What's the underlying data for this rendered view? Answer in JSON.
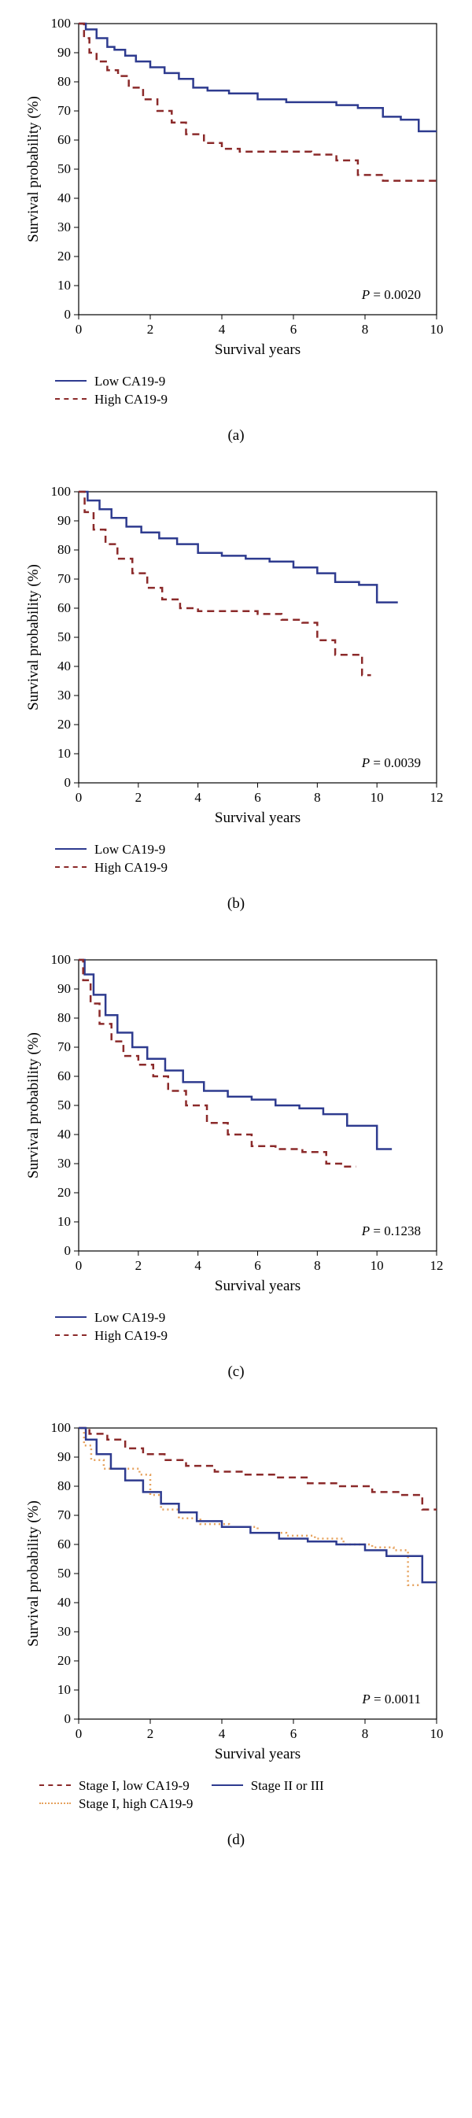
{
  "global": {
    "ylabel": "Survival probability (%)",
    "xlabel": "Survival years",
    "axis_color": "#000000",
    "text_color": "#000000",
    "label_fontsize": 19,
    "tick_fontsize": 17
  },
  "colors": {
    "low": "#2e3b8f",
    "high": "#8b2a2a",
    "stage1low": "#8b2a2a",
    "stage1high": "#e6a15c",
    "stage23": "#2e3b8f"
  },
  "panels": {
    "a": {
      "label": "(a)",
      "pvalue": "P = 0.0020",
      "xlim": [
        0,
        10
      ],
      "xticks": [
        0,
        2,
        4,
        6,
        8,
        10
      ],
      "ylim": [
        0,
        100
      ],
      "yticks": [
        0,
        10,
        20,
        30,
        40,
        50,
        60,
        70,
        80,
        90,
        100
      ],
      "series": [
        {
          "key": "low",
          "style": "solid",
          "label": "Low CA19-9",
          "pts": [
            [
              0,
              100
            ],
            [
              0.2,
              98
            ],
            [
              0.5,
              95
            ],
            [
              0.8,
              92
            ],
            [
              1.0,
              91
            ],
            [
              1.3,
              89
            ],
            [
              1.6,
              87
            ],
            [
              2.0,
              85
            ],
            [
              2.4,
              83
            ],
            [
              2.8,
              81
            ],
            [
              3.2,
              78
            ],
            [
              3.6,
              77
            ],
            [
              4.2,
              76
            ],
            [
              5.0,
              74
            ],
            [
              5.8,
              73
            ],
            [
              6.5,
              73
            ],
            [
              7.2,
              72
            ],
            [
              7.8,
              71
            ],
            [
              8.5,
              68
            ],
            [
              9.0,
              67
            ],
            [
              9.5,
              63
            ],
            [
              10,
              63
            ]
          ]
        },
        {
          "key": "high",
          "style": "dashed",
          "label": "High CA19-9",
          "pts": [
            [
              0,
              100
            ],
            [
              0.15,
              95
            ],
            [
              0.3,
              90
            ],
            [
              0.5,
              87
            ],
            [
              0.8,
              84
            ],
            [
              1.1,
              82
            ],
            [
              1.4,
              78
            ],
            [
              1.8,
              74
            ],
            [
              2.2,
              70
            ],
            [
              2.6,
              66
            ],
            [
              3.0,
              62
            ],
            [
              3.5,
              59
            ],
            [
              4.0,
              57
            ],
            [
              4.5,
              56
            ],
            [
              5.5,
              56
            ],
            [
              6.5,
              55
            ],
            [
              7.2,
              53
            ],
            [
              7.8,
              48
            ],
            [
              8.5,
              46
            ],
            [
              9.2,
              46
            ],
            [
              10,
              46
            ]
          ]
        }
      ]
    },
    "b": {
      "label": "(b)",
      "pvalue": "P = 0.0039",
      "xlim": [
        0,
        12
      ],
      "xticks": [
        0,
        2,
        4,
        6,
        8,
        10,
        12
      ],
      "ylim": [
        0,
        100
      ],
      "yticks": [
        0,
        10,
        20,
        30,
        40,
        50,
        60,
        70,
        80,
        90,
        100
      ],
      "series": [
        {
          "key": "low",
          "style": "solid",
          "label": "Low CA19-9",
          "pts": [
            [
              0,
              100
            ],
            [
              0.3,
              97
            ],
            [
              0.7,
              94
            ],
            [
              1.1,
              91
            ],
            [
              1.6,
              88
            ],
            [
              2.1,
              86
            ],
            [
              2.7,
              84
            ],
            [
              3.3,
              82
            ],
            [
              4.0,
              79
            ],
            [
              4.8,
              78
            ],
            [
              5.6,
              77
            ],
            [
              6.4,
              76
            ],
            [
              7.2,
              74
            ],
            [
              8.0,
              72
            ],
            [
              8.6,
              69
            ],
            [
              9.4,
              68
            ],
            [
              10.0,
              62
            ],
            [
              10.7,
              62
            ]
          ]
        },
        {
          "key": "high",
          "style": "dashed",
          "label": "High CA19-9",
          "pts": [
            [
              0,
              100
            ],
            [
              0.2,
              93
            ],
            [
              0.5,
              87
            ],
            [
              0.9,
              82
            ],
            [
              1.3,
              77
            ],
            [
              1.8,
              72
            ],
            [
              2.3,
              67
            ],
            [
              2.8,
              63
            ],
            [
              3.4,
              60
            ],
            [
              4.0,
              59
            ],
            [
              5.0,
              59
            ],
            [
              6.0,
              58
            ],
            [
              6.8,
              56
            ],
            [
              7.5,
              55
            ],
            [
              8.0,
              49
            ],
            [
              8.6,
              44
            ],
            [
              9.5,
              37
            ],
            [
              9.8,
              37
            ]
          ]
        }
      ]
    },
    "c": {
      "label": "(c)",
      "pvalue": "P = 0.1238",
      "xlim": [
        0,
        12
      ],
      "xticks": [
        0,
        2,
        4,
        6,
        8,
        10,
        12
      ],
      "ylim": [
        0,
        100
      ],
      "yticks": [
        0,
        10,
        20,
        30,
        40,
        50,
        60,
        70,
        80,
        90,
        100
      ],
      "series": [
        {
          "key": "low",
          "style": "solid",
          "label": "Low CA19-9",
          "pts": [
            [
              0,
              100
            ],
            [
              0.2,
              95
            ],
            [
              0.5,
              88
            ],
            [
              0.9,
              81
            ],
            [
              1.3,
              75
            ],
            [
              1.8,
              70
            ],
            [
              2.3,
              66
            ],
            [
              2.9,
              62
            ],
            [
              3.5,
              58
            ],
            [
              4.2,
              55
            ],
            [
              5.0,
              53
            ],
            [
              5.8,
              52
            ],
            [
              6.6,
              50
            ],
            [
              7.4,
              49
            ],
            [
              8.2,
              47
            ],
            [
              9.0,
              43
            ],
            [
              9.6,
              43
            ],
            [
              10.0,
              35
            ],
            [
              10.5,
              35
            ]
          ]
        },
        {
          "key": "high",
          "style": "dashed",
          "label": "High CA19-9",
          "pts": [
            [
              0,
              100
            ],
            [
              0.15,
              93
            ],
            [
              0.4,
              85
            ],
            [
              0.7,
              78
            ],
            [
              1.1,
              72
            ],
            [
              1.5,
              67
            ],
            [
              2.0,
              64
            ],
            [
              2.5,
              60
            ],
            [
              3.0,
              55
            ],
            [
              3.6,
              50
            ],
            [
              4.3,
              44
            ],
            [
              5.0,
              40
            ],
            [
              5.8,
              36
            ],
            [
              6.6,
              35
            ],
            [
              7.5,
              34
            ],
            [
              8.3,
              30
            ],
            [
              8.8,
              29
            ],
            [
              9.3,
              29
            ]
          ]
        }
      ]
    },
    "d": {
      "label": "(d)",
      "pvalue": "P = 0.0011",
      "xlim": [
        0,
        10
      ],
      "xticks": [
        0,
        2,
        4,
        6,
        8,
        10
      ],
      "ylim": [
        0,
        100
      ],
      "yticks": [
        0,
        10,
        20,
        30,
        40,
        50,
        60,
        70,
        80,
        90,
        100
      ],
      "series": [
        {
          "key": "stage1low",
          "style": "dashed",
          "label": "Stage I, low CA19-9",
          "pts": [
            [
              0,
              100
            ],
            [
              0.3,
              98
            ],
            [
              0.8,
              96
            ],
            [
              1.3,
              93
            ],
            [
              1.8,
              91
            ],
            [
              2.4,
              89
            ],
            [
              3.0,
              87
            ],
            [
              3.8,
              85
            ],
            [
              4.6,
              84
            ],
            [
              5.5,
              83
            ],
            [
              6.4,
              81
            ],
            [
              7.3,
              80
            ],
            [
              8.2,
              78
            ],
            [
              9.0,
              77
            ],
            [
              9.6,
              72
            ],
            [
              10,
              72
            ]
          ]
        },
        {
          "key": "stage1high",
          "style": "dotted",
          "label": "Stage I, high CA19-9",
          "pts": [
            [
              0,
              100
            ],
            [
              0.15,
              94
            ],
            [
              0.35,
              89
            ],
            [
              0.7,
              86
            ],
            [
              1.2,
              86
            ],
            [
              1.7,
              84
            ],
            [
              2.0,
              77
            ],
            [
              2.3,
              72
            ],
            [
              2.8,
              69
            ],
            [
              3.4,
              67
            ],
            [
              4.2,
              66
            ],
            [
              5.0,
              64
            ],
            [
              5.8,
              63
            ],
            [
              6.6,
              62
            ],
            [
              7.4,
              60
            ],
            [
              8.2,
              59
            ],
            [
              8.8,
              58
            ],
            [
              9.2,
              46
            ],
            [
              9.5,
              46
            ]
          ]
        },
        {
          "key": "stage23",
          "style": "solid",
          "label": "Stage II or III",
          "pts": [
            [
              0,
              100
            ],
            [
              0.2,
              96
            ],
            [
              0.5,
              91
            ],
            [
              0.9,
              86
            ],
            [
              1.3,
              82
            ],
            [
              1.8,
              78
            ],
            [
              2.3,
              74
            ],
            [
              2.8,
              71
            ],
            [
              3.3,
              68
            ],
            [
              4.0,
              66
            ],
            [
              4.8,
              64
            ],
            [
              5.6,
              62
            ],
            [
              6.4,
              61
            ],
            [
              7.2,
              60
            ],
            [
              8.0,
              58
            ],
            [
              8.6,
              56
            ],
            [
              9.2,
              56
            ],
            [
              9.6,
              47
            ],
            [
              10,
              47
            ]
          ]
        }
      ],
      "legend": {
        "rows": [
          [
            {
              "key": "stage1low",
              "style": "dashed",
              "label": "Stage I, low CA19-9"
            },
            {
              "key": "stage23",
              "style": "solid",
              "label": "Stage II or III"
            }
          ],
          [
            {
              "key": "stage1high",
              "style": "dotted",
              "label": "Stage I, high CA19-9"
            }
          ]
        ]
      }
    }
  }
}
